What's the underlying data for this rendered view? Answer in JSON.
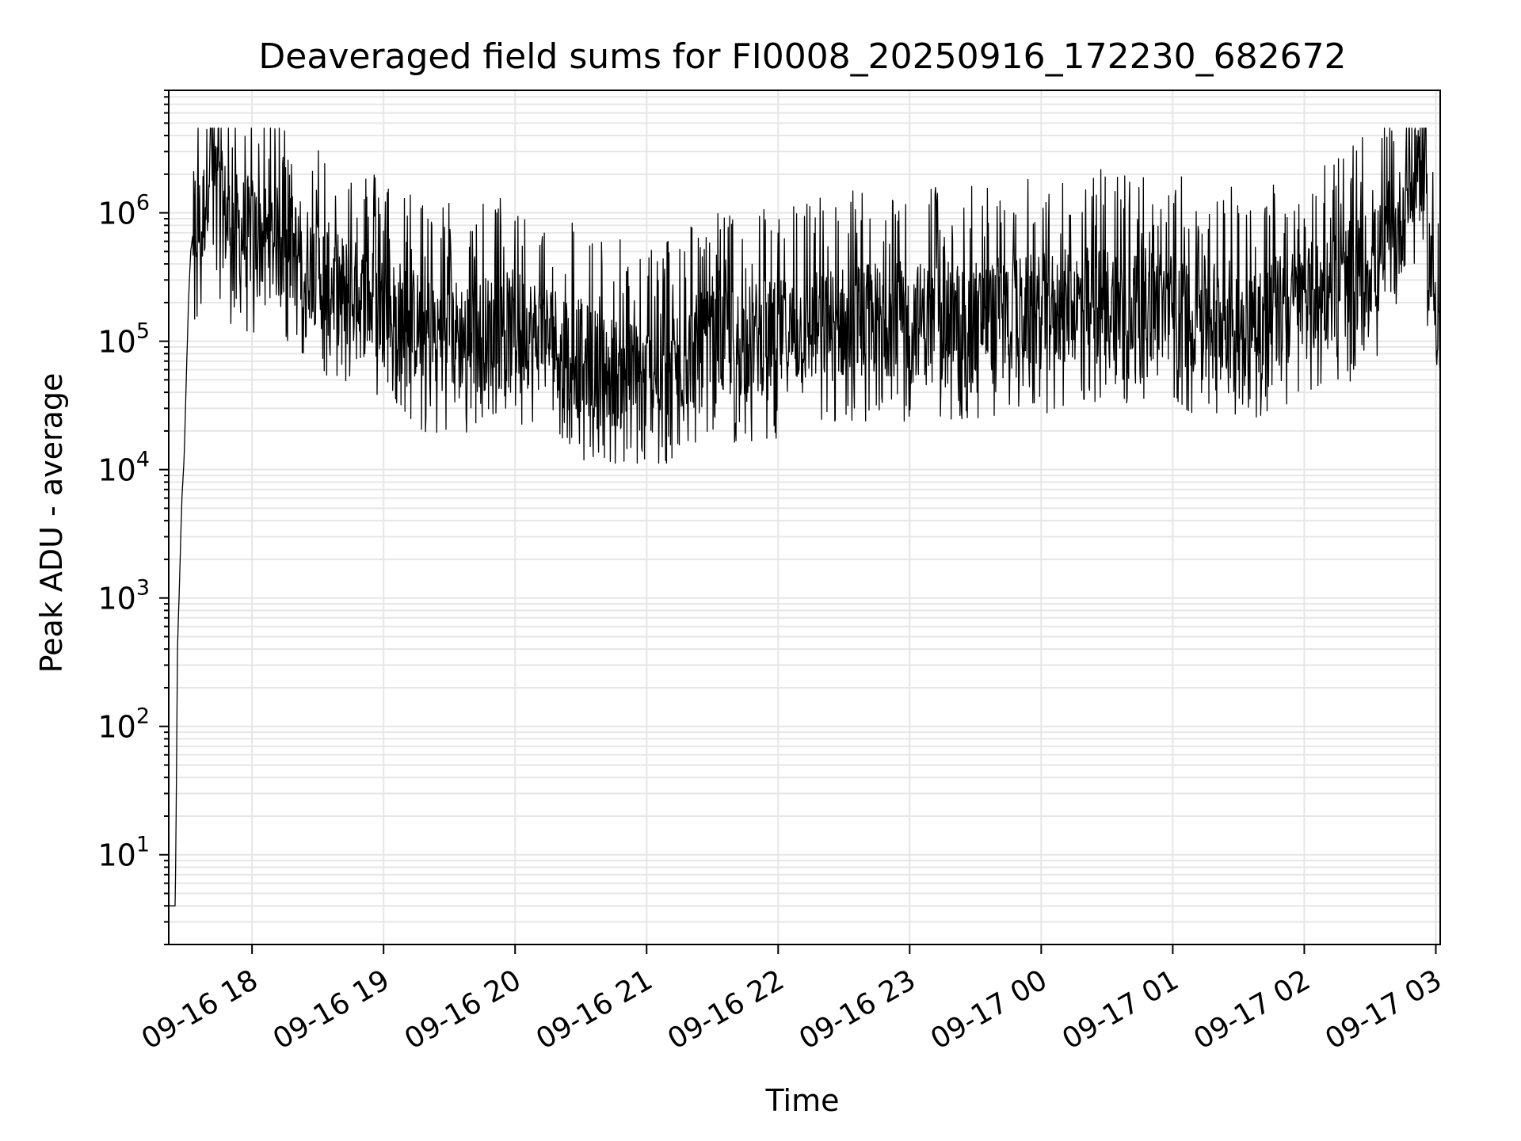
{
  "chart_data": {
    "type": "line",
    "title": "Deaveraged field sums for FI0008_20250916_172230_682672",
    "xlabel": "Time",
    "ylabel": "Peak ADU - average",
    "x_axis": {
      "type": "time",
      "range": [
        "2025-09-16 17:22",
        "2025-09-17 03:02"
      ],
      "ticks": [
        {
          "t": "2025-09-16 18:00",
          "label": "09-16 18"
        },
        {
          "t": "2025-09-16 19:00",
          "label": "09-16 19"
        },
        {
          "t": "2025-09-16 20:00",
          "label": "09-16 20"
        },
        {
          "t": "2025-09-16 21:00",
          "label": "09-16 21"
        },
        {
          "t": "2025-09-16 22:00",
          "label": "09-16 22"
        },
        {
          "t": "2025-09-16 23:00",
          "label": "09-16 23"
        },
        {
          "t": "2025-09-17 00:00",
          "label": "09-17 00"
        },
        {
          "t": "2025-09-17 01:00",
          "label": "09-17 01"
        },
        {
          "t": "2025-09-17 02:00",
          "label": "09-17 02"
        },
        {
          "t": "2025-09-17 03:00",
          "label": "09-17 03"
        }
      ]
    },
    "y_axis": {
      "scale": "log",
      "range": [
        2,
        9000000
      ],
      "ticks": [
        {
          "value": 10,
          "base": "10",
          "exp": "1"
        },
        {
          "value": 100,
          "base": "10",
          "exp": "2"
        },
        {
          "value": 1000,
          "base": "10",
          "exp": "3"
        },
        {
          "value": 10000,
          "base": "10",
          "exp": "4"
        },
        {
          "value": 100000,
          "base": "10",
          "exp": "5"
        },
        {
          "value": 1000000,
          "base": "10",
          "exp": "6"
        }
      ]
    },
    "grid": true,
    "line_color": "#000000",
    "grid_color": "#e6e6e6",
    "series": [
      {
        "values_note_free": true,
        "points": [
          [
            "2025-09-16 17:22",
            4
          ],
          [
            "2025-09-16 17:25",
            4
          ],
          [
            "2025-09-16 17:26",
            400
          ],
          [
            "2025-09-16 17:27",
            1500
          ],
          [
            "2025-09-16 17:28",
            6000
          ],
          [
            "2025-09-16 17:29",
            12000
          ],
          [
            "2025-09-16 17:30",
            50000
          ],
          [
            "2025-09-16 17:31",
            200000
          ],
          [
            "2025-09-16 17:32",
            500000
          ],
          [
            "2025-09-16 17:34",
            900000
          ],
          [
            "2025-09-16 17:37",
            700000
          ],
          [
            "2025-09-16 17:39",
            1500000
          ],
          [
            "2025-09-16 17:41",
            3500000
          ],
          [
            "2025-09-16 17:43",
            2000000
          ],
          [
            "2025-09-16 17:45",
            1200000
          ],
          [
            "2025-09-16 17:50",
            800000
          ],
          [
            "2025-09-16 17:55",
            700000
          ],
          [
            "2025-09-16 18:00",
            700000
          ],
          [
            "2025-09-16 18:20",
            500000
          ],
          [
            "2025-09-16 18:40",
            250000
          ],
          [
            "2025-09-16 19:00",
            180000
          ],
          [
            "2025-09-16 19:20",
            120000
          ],
          [
            "2025-09-16 19:40",
            110000
          ],
          [
            "2025-09-16 20:00",
            130000
          ],
          [
            "2025-09-16 20:20",
            100000
          ],
          [
            "2025-09-16 20:40",
            60000
          ],
          [
            "2025-09-16 21:00",
            50000
          ],
          [
            "2025-09-16 21:20",
            80000
          ],
          [
            "2025-09-16 21:40",
            100000
          ],
          [
            "2025-09-16 22:00",
            110000
          ],
          [
            "2025-09-16 22:20",
            130000
          ],
          [
            "2025-09-16 22:40",
            150000
          ],
          [
            "2025-09-16 23:00",
            150000
          ],
          [
            "2025-09-16 23:20",
            150000
          ],
          [
            "2025-09-16 23:40",
            160000
          ],
          [
            "2025-09-17 00:00",
            170000
          ],
          [
            "2025-09-17 00:20",
            200000
          ],
          [
            "2025-09-17 00:40",
            200000
          ],
          [
            "2025-09-17 01:00",
            180000
          ],
          [
            "2025-09-17 01:20",
            160000
          ],
          [
            "2025-09-17 01:40",
            150000
          ],
          [
            "2025-09-17 02:00",
            200000
          ],
          [
            "2025-09-17 02:20",
            300000
          ],
          [
            "2025-09-17 02:40",
            500000
          ],
          [
            "2025-09-17 02:50",
            2000000
          ],
          [
            "2025-09-17 02:53",
            3500000
          ],
          [
            "2025-09-17 02:57",
            500000
          ],
          [
            "2025-09-17 03:02",
            100000
          ]
        ]
      }
    ]
  }
}
